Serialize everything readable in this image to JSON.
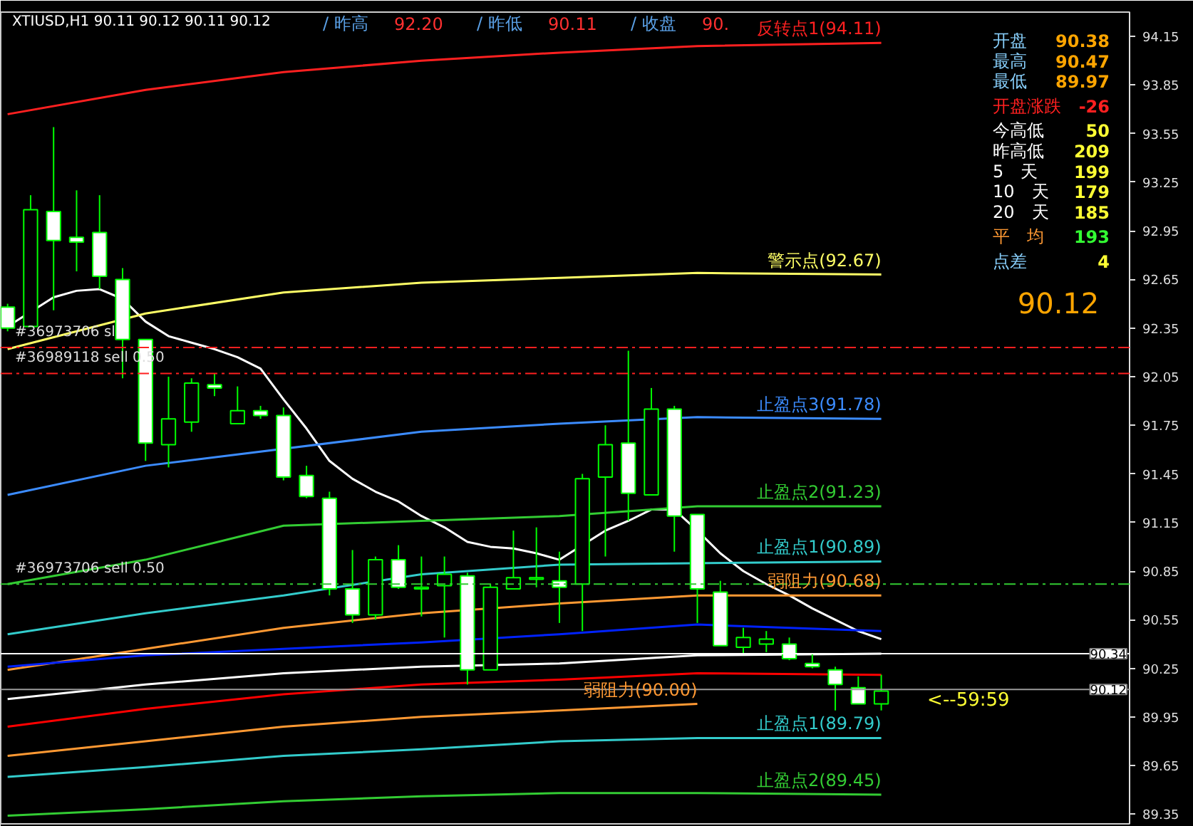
{
  "chart_data": {
    "type": "candlestick",
    "title": "XTIUSD,H1  90.11 90.12 90.11 90.12",
    "categories": [
      null,
      null,
      null,
      null,
      null,
      null,
      null,
      null,
      null,
      null,
      null,
      null,
      null,
      null,
      null,
      null,
      null,
      null,
      null,
      null,
      null,
      null,
      null,
      null,
      null,
      null,
      null,
      null,
      null,
      null,
      null,
      null,
      null,
      null,
      null,
      null,
      null,
      null,
      null
    ],
    "color": "#00ff00",
    "ohlc": [
      [
        92.48,
        92.5,
        92.33,
        92.35
      ],
      [
        92.36,
        93.17,
        92.36,
        93.08
      ],
      [
        93.07,
        93.59,
        92.46,
        92.89
      ],
      [
        92.91,
        93.2,
        92.7,
        92.88
      ],
      [
        92.94,
        93.17,
        92.59,
        92.67
      ],
      [
        92.65,
        92.72,
        92.04,
        92.28
      ],
      [
        92.28,
        92.28,
        91.53,
        91.64
      ],
      [
        91.63,
        92.05,
        91.49,
        91.79
      ],
      [
        91.77,
        92.04,
        91.71,
        92.01
      ],
      [
        92.0,
        92.07,
        91.93,
        91.98
      ],
      [
        91.76,
        91.99,
        91.76,
        91.84
      ],
      [
        91.84,
        91.87,
        91.79,
        91.81
      ],
      [
        91.81,
        91.86,
        91.41,
        91.43
      ],
      [
        91.44,
        91.5,
        91.3,
        91.31
      ],
      [
        91.3,
        91.34,
        90.7,
        90.74
      ],
      [
        90.74,
        90.98,
        90.53,
        90.58
      ],
      [
        90.58,
        90.94,
        90.55,
        90.92
      ],
      [
        90.92,
        91.01,
        90.74,
        90.75
      ],
      [
        90.74,
        90.94,
        90.57,
        90.75
      ],
      [
        90.76,
        90.94,
        90.44,
        90.83
      ],
      [
        90.82,
        90.84,
        90.15,
        90.24
      ],
      [
        90.24,
        90.77,
        90.24,
        90.75
      ],
      [
        90.74,
        91.1,
        90.74,
        90.81
      ],
      [
        90.8,
        91.12,
        90.75,
        90.81
      ],
      [
        90.79,
        90.97,
        90.53,
        90.75
      ],
      [
        90.77,
        91.45,
        90.48,
        91.42
      ],
      [
        91.43,
        91.75,
        90.94,
        91.63
      ],
      [
        91.64,
        92.21,
        91.16,
        91.33
      ],
      [
        91.32,
        91.98,
        91.32,
        91.85
      ],
      [
        91.85,
        91.87,
        90.97,
        91.19
      ],
      [
        91.2,
        91.2,
        90.53,
        90.74
      ],
      [
        90.72,
        90.79,
        90.39,
        90.39
      ],
      [
        90.38,
        90.5,
        90.34,
        90.44
      ],
      [
        90.4,
        90.48,
        90.35,
        90.43
      ],
      [
        90.4,
        90.44,
        90.3,
        90.31
      ],
      [
        90.28,
        90.34,
        90.25,
        90.26
      ],
      [
        90.24,
        90.26,
        89.99,
        90.15
      ],
      [
        90.13,
        90.2,
        90.03,
        90.03
      ],
      [
        90.03,
        90.21,
        89.99,
        90.11
      ]
    ],
    "series": [
      {
        "type": "line",
        "color": "#ffffff",
        "values": [
          92.36,
          null,
          92.54,
          92.58,
          92.59,
          92.53,
          92.39,
          92.3,
          92.26,
          92.22,
          92.17,
          92.1,
          91.91,
          91.73,
          91.53,
          91.42,
          91.34,
          91.28,
          91.19,
          91.12,
          91.03,
          91.0,
          90.99,
          90.96,
          90.92,
          null,
          91.1,
          91.16,
          91.23,
          91.23,
          91.1,
          90.96,
          90.85,
          90.77,
          90.7,
          90.62,
          90.55,
          90.48,
          90.43
        ]
      },
      {
        "type": "line",
        "name": "反转点1(94.11)",
        "color": "#ff2020",
        "values": [
          93.67,
          null,
          null,
          null,
          null,
          null,
          93.82,
          null,
          null,
          null,
          null,
          null,
          93.93,
          null,
          null,
          null,
          null,
          null,
          94.0,
          null,
          null,
          null,
          null,
          null,
          94.05,
          null,
          null,
          null,
          null,
          null,
          94.09,
          null,
          null,
          null,
          null,
          null,
          null,
          null,
          94.11
        ]
      },
      {
        "type": "line",
        "name": "警示点(92.67)",
        "color": "#ffff66",
        "values": [
          92.22,
          null,
          null,
          null,
          null,
          null,
          92.44,
          null,
          null,
          null,
          null,
          null,
          92.57,
          null,
          null,
          null,
          null,
          null,
          92.63,
          null,
          null,
          null,
          null,
          null,
          92.66,
          null,
          null,
          null,
          null,
          null,
          92.69,
          null,
          null,
          null,
          null,
          null,
          null,
          null,
          92.68
        ]
      },
      {
        "type": "line",
        "name": "止盈点3(91.78)",
        "color": "#3c8cff",
        "values": [
          91.32,
          null,
          null,
          null,
          null,
          null,
          91.5,
          null,
          null,
          null,
          null,
          null,
          null,
          null,
          null,
          null,
          null,
          null,
          91.71,
          null,
          null,
          null,
          null,
          null,
          91.76,
          null,
          null,
          null,
          null,
          null,
          91.8,
          null,
          null,
          null,
          null,
          null,
          null,
          null,
          91.79
        ]
      },
      {
        "type": "line",
        "name": "止盈点2(91.23)",
        "color": "#33cc33",
        "values": [
          90.77,
          null,
          null,
          null,
          null,
          null,
          90.92,
          null,
          null,
          null,
          null,
          null,
          91.13,
          null,
          null,
          null,
          null,
          null,
          91.16,
          null,
          null,
          null,
          null,
          null,
          91.19,
          null,
          null,
          null,
          null,
          null,
          91.25,
          null,
          null,
          null,
          null,
          null,
          null,
          null,
          91.25
        ]
      },
      {
        "type": "line",
        "name": "止盈点1(90.89)",
        "color": "#33cccc",
        "values": [
          90.46,
          null,
          null,
          null,
          null,
          null,
          90.59,
          null,
          null,
          null,
          null,
          null,
          90.7,
          null,
          null,
          null,
          null,
          null,
          90.83,
          null,
          null,
          null,
          null,
          null,
          90.89,
          null,
          null,
          null,
          null,
          null,
          null,
          null,
          null,
          null,
          null,
          null,
          null,
          null,
          90.91
        ]
      },
      {
        "type": "line",
        "name": "弱阻力(90.68)",
        "color": "#ff9933",
        "values": [
          90.24,
          null,
          null,
          null,
          null,
          null,
          90.37,
          null,
          null,
          null,
          null,
          null,
          90.5,
          null,
          null,
          null,
          null,
          null,
          90.59,
          null,
          null,
          null,
          null,
          null,
          90.65,
          null,
          null,
          null,
          null,
          null,
          90.7,
          null,
          null,
          null,
          null,
          null,
          null,
          null,
          90.7
        ]
      },
      {
        "type": "line",
        "color": "#0022ff",
        "values": [
          90.26,
          null,
          null,
          null,
          null,
          null,
          90.33,
          null,
          null,
          null,
          null,
          null,
          90.37,
          null,
          null,
          null,
          null,
          null,
          90.41,
          null,
          null,
          null,
          null,
          null,
          90.46,
          null,
          null,
          null,
          null,
          null,
          90.52,
          null,
          null,
          null,
          null,
          null,
          null,
          null,
          90.48
        ]
      },
      {
        "type": "line",
        "color": "#ffffff",
        "values": [
          90.06,
          null,
          null,
          null,
          null,
          null,
          90.15,
          null,
          null,
          null,
          null,
          null,
          90.22,
          null,
          null,
          null,
          null,
          null,
          90.26,
          null,
          null,
          null,
          null,
          null,
          90.28,
          null,
          null,
          null,
          null,
          null,
          90.33,
          null,
          null,
          null,
          null,
          null,
          null,
          null,
          90.34
        ]
      },
      {
        "type": "line",
        "color": "#ff0000",
        "values": [
          89.89,
          null,
          null,
          null,
          null,
          null,
          90.0,
          null,
          null,
          null,
          null,
          null,
          90.09,
          null,
          null,
          null,
          null,
          null,
          90.15,
          null,
          null,
          null,
          null,
          null,
          90.18,
          null,
          null,
          null,
          null,
          null,
          90.22,
          null,
          null,
          null,
          null,
          null,
          null,
          null,
          90.21
        ]
      },
      {
        "type": "line",
        "name": "弱阻力(90.00)",
        "color": "#ff9933",
        "values": [
          89.71,
          null,
          null,
          null,
          null,
          null,
          89.8,
          null,
          null,
          null,
          null,
          null,
          89.89,
          null,
          null,
          null,
          null,
          null,
          89.95,
          null,
          null,
          null,
          null,
          null,
          89.99,
          null,
          null,
          null,
          null,
          null,
          90.03,
          null,
          null,
          null,
          null,
          null,
          null,
          null,
          null
        ]
      },
      {
        "type": "line",
        "name": "止盈点1(89.79)",
        "color": "#33cccc",
        "values": [
          89.58,
          null,
          null,
          null,
          null,
          null,
          89.64,
          null,
          null,
          null,
          null,
          null,
          89.71,
          null,
          null,
          null,
          null,
          null,
          89.75,
          null,
          null,
          null,
          null,
          null,
          89.8,
          null,
          null,
          null,
          null,
          null,
          89.82,
          null,
          null,
          null,
          null,
          null,
          null,
          null,
          89.82
        ]
      },
      {
        "type": "line",
        "name": "止盈点2(89.45)",
        "color": "#33cc33",
        "values": [
          89.34,
          null,
          null,
          null,
          null,
          null,
          89.38,
          null,
          null,
          null,
          null,
          null,
          89.43,
          null,
          null,
          null,
          null,
          null,
          89.46,
          null,
          null,
          null,
          null,
          null,
          89.48,
          null,
          null,
          null,
          null,
          null,
          89.48,
          null,
          null,
          null,
          null,
          null,
          null,
          null,
          89.47
        ]
      }
    ],
    "ref_lines": [
      {
        "axis": "y",
        "value": 92.23,
        "label": "#36973706 sl",
        "color": "#ff2020",
        "line_style": "dashed"
      },
      {
        "axis": "y",
        "value": 92.07,
        "label": "#36989118 sell 0.50",
        "color": "#ff2020",
        "line_style": "dashed"
      },
      {
        "axis": "y",
        "value": 90.77,
        "label": "#36973706 sell 0.50",
        "color": "#33cc33",
        "line_style": "dashed"
      },
      {
        "axis": "y",
        "value": 90.34,
        "label": "90.34",
        "color": "#ffffff",
        "line_style": "solid"
      },
      {
        "axis": "y",
        "value": 90.12,
        "label": "90.12",
        "color": "#9a9a9a",
        "line_style": "solid"
      }
    ],
    "annotations": [
      "/ 昨高",
      "92.20",
      "/ 昨低",
      "90.11",
      "/ 收盘",
      "90.",
      "开盘",
      "90.38",
      "最高",
      "90.47",
      "最低",
      "89.97",
      "开盘涨跌",
      "-26",
      "今高低",
      "50",
      "昨高低",
      "209",
      "5　天",
      "199",
      "10　天",
      "179",
      "20　天",
      "185",
      "平　均",
      "193",
      "点差",
      "4",
      "90.12",
      {
        "text": "<--59:59",
        "y": 90.12
      }
    ],
    "ylim": [
      89.29,
      94.3
    ],
    "yticks": [
      94.15,
      93.85,
      93.55,
      93.25,
      92.95,
      92.65,
      92.35,
      92.05,
      91.75,
      91.45,
      91.15,
      90.85,
      90.55,
      90.25,
      89.95,
      89.65,
      89.35
    ],
    "grid": false
  }
}
